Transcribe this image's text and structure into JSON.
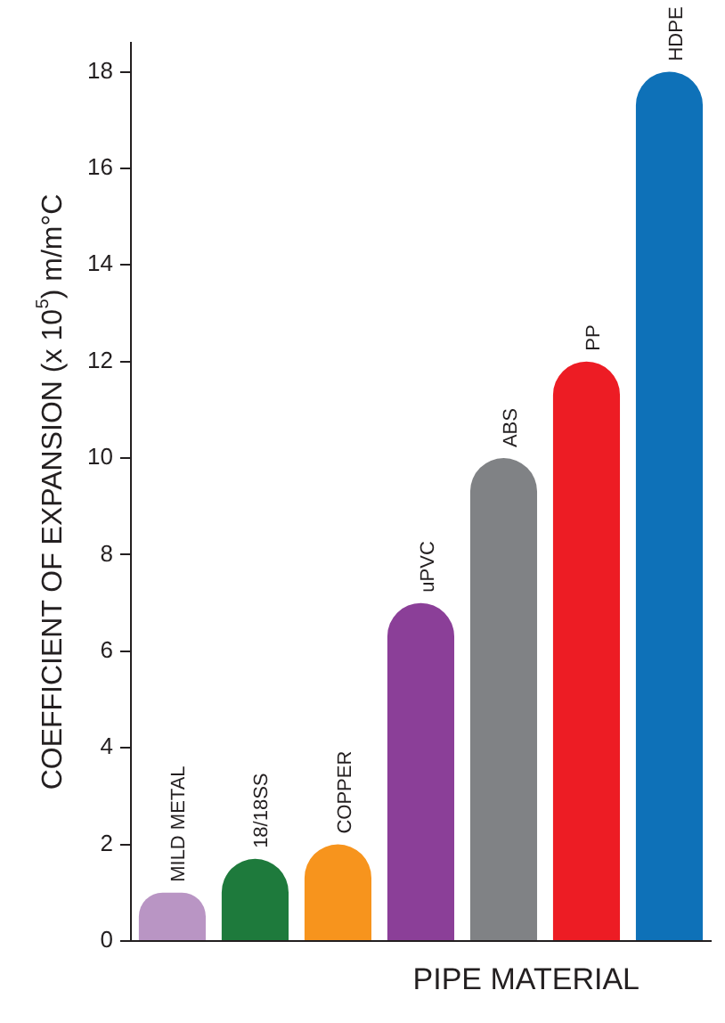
{
  "chart_data": {
    "type": "bar",
    "xlabel": "PIPE MATERIAL",
    "ylabel": "COEFFICIENT OF EXPANSION (x 10$^{5}$) m/m°C",
    "categories": [
      "MILD METAL",
      "18/18SS",
      "COPPER",
      "uPVC",
      "ABS",
      "PP",
      "HDPE"
    ],
    "values": [
      1,
      1.7,
      2,
      7,
      10,
      12,
      18
    ],
    "colors": [
      "#b995c4",
      "#1e7a3c",
      "#f7941d",
      "#8b3f98",
      "#808285",
      "#ed1c24",
      "#0e71b8"
    ],
    "ylim": [
      0,
      18.6
    ],
    "yticks": [
      0,
      2,
      4,
      6,
      8,
      10,
      12,
      14,
      16,
      18
    ],
    "grid": false,
    "legend": false
  }
}
